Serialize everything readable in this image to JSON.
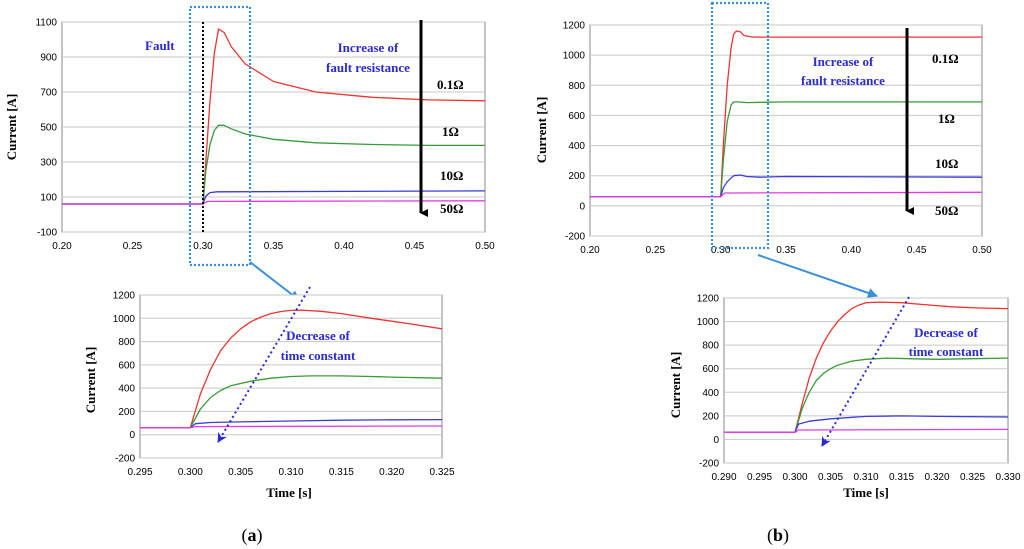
{
  "colors": {
    "red": "#ee3333",
    "green": "#3a9a3a",
    "blue": "#3b3bd8",
    "magenta": "#e23ce2",
    "annotation": "#2a2ad4",
    "box": "#3a8fd6"
  },
  "panel_labels": {
    "a": {
      "open": "(",
      "letter": "a",
      "close": ")"
    },
    "b": {
      "open": "(",
      "letter": "b",
      "close": ")"
    }
  },
  "chart_data": [
    {
      "id": "a_main",
      "type": "line",
      "ylabel": "Current [A]",
      "xlabel": "",
      "xlim": [
        0.2,
        0.5
      ],
      "ylim": [
        -100,
        1100
      ],
      "xticks": [
        "0.20",
        "0.25",
        "0.30",
        "0.35",
        "0.40",
        "0.45",
        "0.50"
      ],
      "yticks": [
        "-100",
        "100",
        "300",
        "500",
        "700",
        "900",
        "1100"
      ],
      "annotations": {
        "fault": "Fault",
        "increase_line1": "Increase of",
        "increase_line2": "fault resistance"
      },
      "series": [
        {
          "name": "0.1Ω",
          "color": "red",
          "x": [
            0.2,
            0.3,
            0.302,
            0.305,
            0.308,
            0.311,
            0.315,
            0.32,
            0.33,
            0.35,
            0.38,
            0.42,
            0.46,
            0.5
          ],
          "y": [
            60,
            60,
            300,
            650,
            920,
            1060,
            1040,
            960,
            860,
            760,
            700,
            670,
            655,
            650
          ]
        },
        {
          "name": "1Ω",
          "color": "green",
          "x": [
            0.2,
            0.3,
            0.302,
            0.305,
            0.308,
            0.311,
            0.315,
            0.32,
            0.33,
            0.35,
            0.38,
            0.42,
            0.46,
            0.5
          ],
          "y": [
            60,
            60,
            250,
            400,
            480,
            510,
            510,
            490,
            460,
            430,
            410,
            400,
            395,
            395
          ]
        },
        {
          "name": "10Ω",
          "color": "blue",
          "x": [
            0.2,
            0.3,
            0.302,
            0.305,
            0.31,
            0.5
          ],
          "y": [
            60,
            60,
            105,
            125,
            130,
            135
          ]
        },
        {
          "name": "50Ω",
          "color": "magenta",
          "x": [
            0.2,
            0.3,
            0.303,
            0.5
          ],
          "y": [
            60,
            60,
            75,
            78
          ]
        }
      ]
    },
    {
      "id": "a_zoom",
      "type": "line",
      "ylabel": "Current [A]",
      "xlabel": "Time [s]",
      "xlim": [
        0.295,
        0.325
      ],
      "ylim": [
        -200,
        1200
      ],
      "xticks": [
        "0.295",
        "0.300",
        "0.305",
        "0.310",
        "0.315",
        "0.320",
        "0.325"
      ],
      "yticks": [
        "-200",
        "0",
        "200",
        "400",
        "600",
        "800",
        "1000",
        "1200"
      ],
      "annotations": {
        "decrease_line1": "Decrease of",
        "decrease_line2": "time constant"
      },
      "series": [
        {
          "name": "0.1Ω",
          "color": "red",
          "x": [
            0.295,
            0.3,
            0.301,
            0.302,
            0.303,
            0.304,
            0.305,
            0.306,
            0.307,
            0.308,
            0.309,
            0.31,
            0.311,
            0.313,
            0.315,
            0.318,
            0.32,
            0.322,
            0.325
          ],
          "y": [
            60,
            60,
            350,
            560,
            720,
            830,
            910,
            970,
            1010,
            1040,
            1058,
            1068,
            1070,
            1060,
            1040,
            1000,
            975,
            950,
            910
          ]
        },
        {
          "name": "1Ω",
          "color": "green",
          "x": [
            0.295,
            0.3,
            0.301,
            0.302,
            0.303,
            0.304,
            0.306,
            0.308,
            0.31,
            0.312,
            0.315,
            0.318,
            0.32,
            0.325
          ],
          "y": [
            60,
            60,
            220,
            320,
            380,
            420,
            460,
            485,
            500,
            505,
            505,
            500,
            495,
            485
          ]
        },
        {
          "name": "10Ω",
          "color": "blue",
          "x": [
            0.295,
            0.3,
            0.3005,
            0.302,
            0.305,
            0.31,
            0.315,
            0.32,
            0.325
          ],
          "y": [
            60,
            60,
            95,
            105,
            110,
            118,
            125,
            128,
            130
          ]
        },
        {
          "name": "50Ω",
          "color": "magenta",
          "x": [
            0.295,
            0.3,
            0.3005,
            0.325
          ],
          "y": [
            60,
            60,
            70,
            75
          ]
        }
      ]
    },
    {
      "id": "b_main",
      "type": "line",
      "ylabel": "Current [A]",
      "xlabel": "",
      "xlim": [
        0.2,
        0.5
      ],
      "ylim": [
        -200,
        1200
      ],
      "xticks": [
        "0.20",
        "0.25",
        "0.30",
        "0.35",
        "0.40",
        "0.45",
        "0.50"
      ],
      "yticks": [
        "-200",
        "0",
        "200",
        "400",
        "600",
        "800",
        "1000",
        "1200"
      ],
      "annotations": {
        "increase_line1": "Increase of",
        "increase_line2": "fault resistance"
      },
      "series": [
        {
          "name": "0.1Ω",
          "color": "red",
          "x": [
            0.2,
            0.3,
            0.302,
            0.305,
            0.308,
            0.31,
            0.312,
            0.315,
            0.318,
            0.325,
            0.35,
            0.5
          ],
          "y": [
            60,
            60,
            400,
            800,
            1050,
            1140,
            1160,
            1155,
            1130,
            1120,
            1120,
            1120
          ]
        },
        {
          "name": "1Ω",
          "color": "green",
          "x": [
            0.2,
            0.3,
            0.302,
            0.305,
            0.308,
            0.31,
            0.313,
            0.32,
            0.35,
            0.5
          ],
          "y": [
            60,
            60,
            300,
            560,
            670,
            690,
            690,
            685,
            690,
            690
          ]
        },
        {
          "name": "10Ω",
          "color": "blue",
          "x": [
            0.2,
            0.3,
            0.302,
            0.305,
            0.31,
            0.315,
            0.32,
            0.33,
            0.35,
            0.5
          ],
          "y": [
            60,
            60,
            120,
            160,
            200,
            205,
            195,
            190,
            195,
            190
          ]
        },
        {
          "name": "50Ω",
          "color": "magenta",
          "x": [
            0.2,
            0.3,
            0.303,
            0.5
          ],
          "y": [
            60,
            60,
            85,
            90
          ]
        }
      ]
    },
    {
      "id": "b_zoom",
      "type": "line",
      "ylabel": "Current [A]",
      "xlabel": "Time [s]",
      "xlim": [
        0.29,
        0.33
      ],
      "ylim": [
        -200,
        1200
      ],
      "xticks": [
        "0.290",
        "0.295",
        "0.300",
        "0.305",
        "0.310",
        "0.315",
        "0.320",
        "0.325",
        "0.330"
      ],
      "yticks": [
        "-200",
        "0",
        "200",
        "400",
        "600",
        "800",
        "1000",
        "1200"
      ],
      "annotations": {
        "decrease_line1": "Decrease of",
        "decrease_line2": "time constant"
      },
      "series": [
        {
          "name": "0.1Ω",
          "color": "red",
          "x": [
            0.29,
            0.3,
            0.301,
            0.302,
            0.303,
            0.304,
            0.305,
            0.306,
            0.307,
            0.308,
            0.309,
            0.31,
            0.312,
            0.315,
            0.318,
            0.322,
            0.326,
            0.33
          ],
          "y": [
            60,
            60,
            300,
            520,
            690,
            820,
            920,
            1000,
            1060,
            1110,
            1140,
            1160,
            1165,
            1160,
            1145,
            1125,
            1115,
            1110
          ]
        },
        {
          "name": "1Ω",
          "color": "green",
          "x": [
            0.29,
            0.3,
            0.301,
            0.302,
            0.303,
            0.304,
            0.305,
            0.306,
            0.308,
            0.31,
            0.313,
            0.316,
            0.32,
            0.325,
            0.33
          ],
          "y": [
            60,
            60,
            260,
            400,
            500,
            560,
            600,
            630,
            665,
            680,
            690,
            685,
            680,
            685,
            690
          ]
        },
        {
          "name": "10Ω",
          "color": "blue",
          "x": [
            0.29,
            0.3,
            0.3005,
            0.302,
            0.305,
            0.31,
            0.315,
            0.32,
            0.33
          ],
          "y": [
            60,
            60,
            130,
            155,
            175,
            195,
            200,
            195,
            190
          ]
        },
        {
          "name": "50Ω",
          "color": "magenta",
          "x": [
            0.29,
            0.3,
            0.3005,
            0.33
          ],
          "y": [
            60,
            60,
            80,
            85
          ]
        }
      ]
    }
  ]
}
